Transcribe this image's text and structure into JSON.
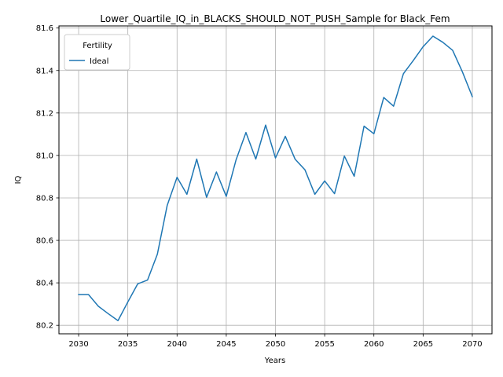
{
  "chart_data": {
    "type": "line",
    "title": "Lower_Quartile_IQ_in_BLACKS_SHOULD_NOT_PUSH_Sample for Black_Fem",
    "xlabel": "Years",
    "ylabel": "IQ",
    "xlim": [
      2028,
      2072
    ],
    "ylim": [
      80.16,
      81.61
    ],
    "xticks": [
      2030,
      2035,
      2040,
      2045,
      2050,
      2055,
      2060,
      2065,
      2070
    ],
    "yticks": [
      80.2,
      80.4,
      80.6,
      80.8,
      81.0,
      81.2,
      81.4,
      81.6
    ],
    "grid": true,
    "legend": {
      "title": "Fertility",
      "position": "top-left"
    },
    "series": [
      {
        "name": "Ideal",
        "color": "#1f77b4",
        "x": [
          2030,
          2031,
          2032,
          2033,
          2034,
          2035,
          2036,
          2037,
          2038,
          2039,
          2040,
          2041,
          2042,
          2043,
          2044,
          2045,
          2046,
          2047,
          2048,
          2049,
          2050,
          2051,
          2052,
          2053,
          2054,
          2055,
          2056,
          2057,
          2058,
          2059,
          2060,
          2061,
          2062,
          2063,
          2064,
          2065,
          2066,
          2067,
          2068,
          2069,
          2070
        ],
        "values": [
          80.345,
          80.345,
          80.29,
          80.255,
          80.222,
          80.31,
          80.395,
          80.413,
          80.535,
          80.765,
          80.897,
          80.817,
          80.983,
          80.803,
          80.922,
          80.807,
          80.98,
          81.108,
          80.983,
          81.143,
          80.988,
          81.09,
          80.982,
          80.932,
          80.817,
          80.88,
          80.82,
          80.997,
          80.902,
          81.138,
          81.102,
          81.273,
          81.232,
          81.385,
          81.447,
          81.512,
          81.562,
          81.533,
          81.495,
          81.393,
          81.277
        ]
      }
    ]
  }
}
